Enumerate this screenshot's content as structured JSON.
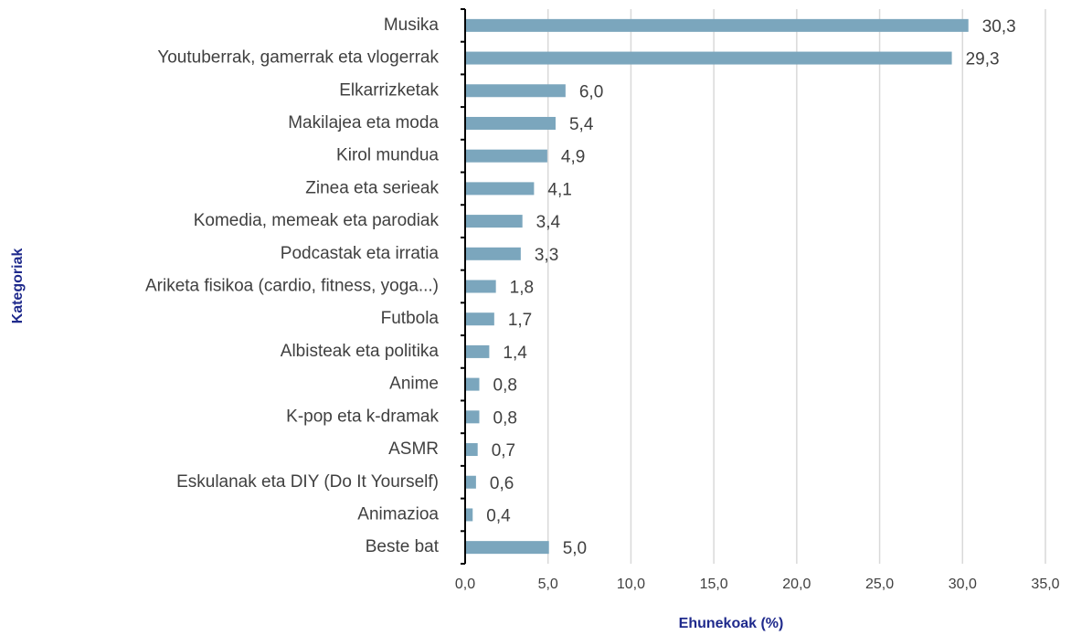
{
  "chart_data": {
    "type": "bar",
    "orientation": "horizontal",
    "x_label": "Ehunekoak (%)",
    "y_label": "Kategoriak",
    "categories": [
      "Musika",
      "Youtuberrak, gamerrak eta vlogerrak",
      "Elkarrizketak",
      "Makilajea eta moda",
      "Kirol mundua",
      "Zinea eta serieak",
      "Komedia, memeak eta parodiak",
      "Podcastak eta irratia",
      "Ariketa fisikoa (cardio, fitness, yoga...)",
      "Futbola",
      "Albisteak eta politika",
      "Anime",
      "K-pop eta k-dramak",
      "ASMR",
      "Eskulanak eta DIY (Do It Yourself)",
      "Animazioa",
      "Beste bat"
    ],
    "values": [
      30.3,
      29.3,
      6.0,
      5.4,
      4.9,
      4.1,
      3.4,
      3.3,
      1.8,
      1.7,
      1.4,
      0.8,
      0.8,
      0.7,
      0.6,
      0.4,
      5.0
    ],
    "value_labels": [
      "30,3",
      "29,3",
      "6,0",
      "5,4",
      "4,9",
      "4,1",
      "3,4",
      "3,3",
      "1,8",
      "1,7",
      "1,4",
      "0,8",
      "0,8",
      "0,7",
      "0,6",
      "0,4",
      "5,0"
    ],
    "color": "#7ba6bd",
    "xlim": [
      0,
      35
    ],
    "xticks": [
      {
        "value": 0,
        "label": "0,0"
      },
      {
        "value": 5,
        "label": "5,0"
      },
      {
        "value": 10,
        "label": "10,0"
      },
      {
        "value": 15,
        "label": "15,0"
      },
      {
        "value": 20,
        "label": "20,0"
      },
      {
        "value": 25,
        "label": "25,0"
      },
      {
        "value": 30,
        "label": "30,0"
      },
      {
        "value": 35,
        "label": "35,0"
      }
    ],
    "grid": true
  }
}
